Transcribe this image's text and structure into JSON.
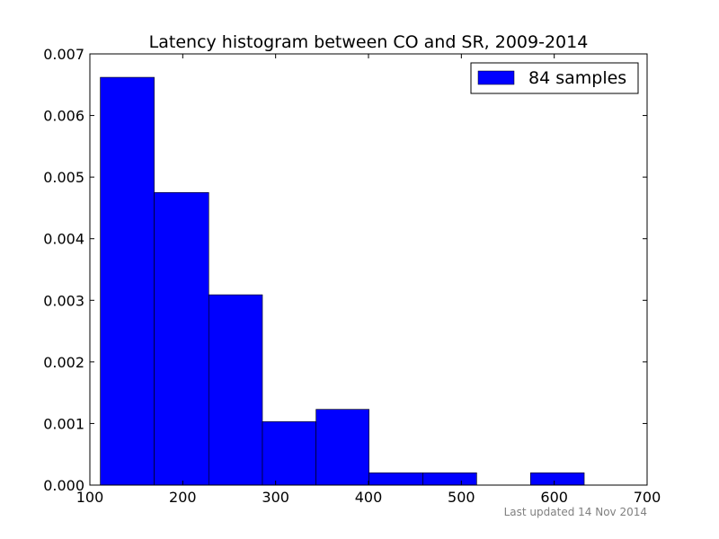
{
  "chart_data": {
    "type": "bar",
    "title": "Latency histogram between CO and SR, 2009-2014",
    "xlabel": "",
    "ylabel": "",
    "xlim": [
      100,
      700
    ],
    "ylim": [
      0,
      0.007
    ],
    "x_ticks": [
      "100",
      "200",
      "300",
      "400",
      "500",
      "600",
      "700"
    ],
    "y_ticks": [
      "0.000",
      "0.001",
      "0.002",
      "0.003",
      "0.004",
      "0.005",
      "0.006",
      "0.007"
    ],
    "bins": [
      {
        "start": 111.2,
        "end": 169.3,
        "density": 0.00662
      },
      {
        "start": 169.3,
        "end": 228.0,
        "density": 0.00475
      },
      {
        "start": 228.0,
        "end": 285.8,
        "density": 0.00309
      },
      {
        "start": 285.8,
        "end": 343.5,
        "density": 0.00103
      },
      {
        "start": 343.5,
        "end": 400.6,
        "density": 0.00123
      },
      {
        "start": 400.6,
        "end": 458.7,
        "density": 0.0002
      },
      {
        "start": 458.7,
        "end": 516.5,
        "density": 0.0002
      },
      {
        "start": 516.5,
        "end": 574.5,
        "density": 0.0
      },
      {
        "start": 574.5,
        "end": 632.3,
        "density": 0.0002
      }
    ],
    "series": [
      {
        "name": "84 samples",
        "color": "#0000ff"
      }
    ],
    "legend_position": "top-right",
    "grid": false,
    "footnote": "Last updated 14 Nov 2014"
  }
}
